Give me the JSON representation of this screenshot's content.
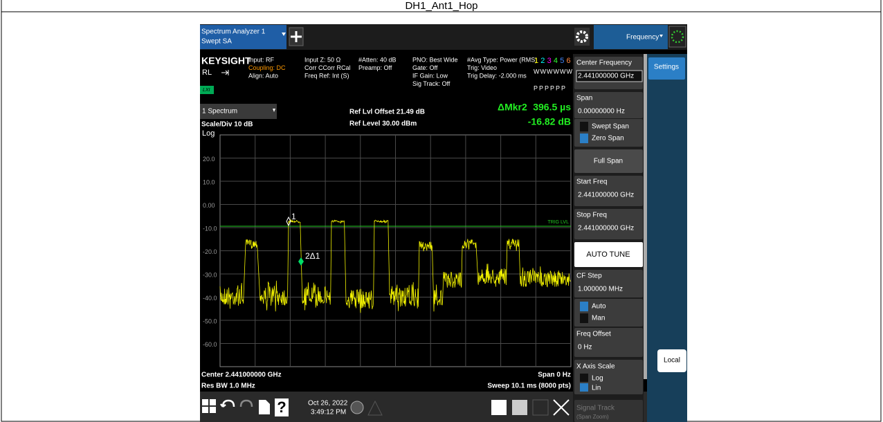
{
  "title": "DH1_Ant1_Hop",
  "toolbar": {
    "instrument": [
      "Spectrum Analyzer 1",
      "Swept SA"
    ],
    "menu": "Frequency"
  },
  "status": {
    "brand": "KEYSIGHT",
    "mode": "RL",
    "lxi": "LXI",
    "columns": [
      [
        "Input: RF",
        "Coupling: DC",
        "Align: Auto"
      ],
      [
        "Input Z: 50 Ω",
        "Corr CCorr RCal",
        "Freq Ref: Int (S)"
      ],
      [
        "#Atten: 40 dB",
        "Preamp: Off"
      ],
      [
        "PNO: Best Wide",
        "Gate: Off",
        "IF Gain: Low",
        "Sig Track: Off"
      ],
      [
        "#Avg Type: Power (RMS)",
        "Trig: Video",
        "Trig Delay: -2.000 ms"
      ]
    ],
    "traces": [
      "1",
      "2",
      "3",
      "4",
      "5",
      "6"
    ],
    "trace_types": "WWWWWW",
    "detectors": "PPPPPP"
  },
  "window": {
    "name": "1 Spectrum",
    "ref_offset": "Ref Lvl Offset 21.49 dB",
    "ref_level": "Ref Level 30.00 dBm",
    "marker_label": "ΔMkr2",
    "marker_x": "396.5 µs",
    "marker_y": "-16.82 dB",
    "scale": "Scale/Div 10 dB",
    "scale_type": "Log",
    "y_labels": [
      "20.0",
      "10.0",
      "0.00",
      "-10.0",
      "-20.0",
      "-30.0",
      "-40.0",
      "-50.0",
      "-60.0"
    ],
    "trig": "TRIG LVL",
    "marker1": "1",
    "marker2": "2Δ1",
    "center": "Center 2.441000000 GHz",
    "rbw": "Res BW 1.0 MHz",
    "span": "Span 0 Hz",
    "sweep": "Sweep 10.1 ms (8000 pts)"
  },
  "taskbar": {
    "date": "Oct 26, 2022",
    "time": "3:49:12 PM"
  },
  "panel": {
    "center_label": "Center Frequency",
    "center_value": "2.441000000 GHz",
    "span_label": "Span",
    "span_value": "0.00000000 Hz",
    "swept": "Swept Span",
    "zero": "Zero Span",
    "full": "Full Span",
    "start_label": "Start Freq",
    "start_value": "2.441000000 GHz",
    "stop_label": "Stop Freq",
    "stop_value": "2.441000000 GHz",
    "auto_tune": "AUTO TUNE",
    "cf_label": "CF Step",
    "cf_value": "1.000000 MHz",
    "auto": "Auto",
    "man": "Man",
    "offset_label": "Freq Offset",
    "offset_value": "0 Hz",
    "xscale": "X Axis Scale",
    "log": "Log",
    "lin": "Lin",
    "track": "Signal Track",
    "track_sub": "(Span Zoom)",
    "tab": "Settings",
    "local": "Local"
  }
}
